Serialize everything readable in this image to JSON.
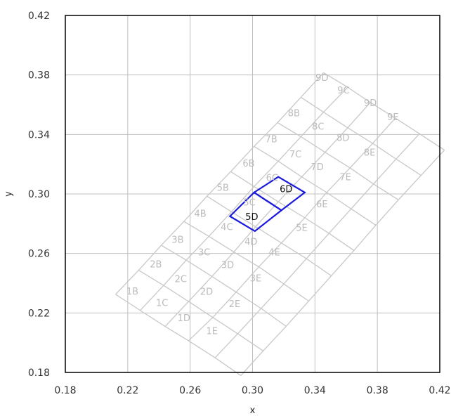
{
  "chart_data": {
    "type": "scatter",
    "title": "",
    "xlabel": "x",
    "ylabel": "y",
    "xlim": [
      0.18,
      0.42
    ],
    "ylim": [
      0.18,
      0.42
    ],
    "grid": true,
    "x_ticks": [
      "0.18",
      "0.22",
      "0.26",
      "0.30",
      "0.34",
      "0.38",
      "0.42"
    ],
    "y_ticks": [
      "0.18",
      "0.22",
      "0.26",
      "0.30",
      "0.34",
      "0.38",
      "0.42"
    ],
    "colors": {
      "bins": "#c8c8c8",
      "bin_labels": "#bbbbbb",
      "highlight": "#1a1adb",
      "highlight_label": "#111111",
      "grid": "#c0c0c0",
      "axis": "#000000"
    },
    "grid_corners": {
      "x": [
        [
          0.2122,
          0.228,
          0.244,
          0.259,
          0.276,
          0.2925
        ],
        [
          0.227,
          0.243,
          0.259,
          0.2745,
          0.2905,
          0.3068
        ],
        [
          0.2415,
          0.2575,
          0.274,
          0.2895,
          0.3055,
          0.3215
        ],
        [
          0.256,
          0.272,
          0.288,
          0.304,
          0.32,
          0.336
        ],
        [
          0.2708,
          0.2865,
          0.302,
          0.3185,
          0.3345,
          0.3505
        ],
        [
          0.286,
          0.301,
          0.3165,
          0.3335,
          0.349,
          0.365
        ],
        [
          0.301,
          0.3165,
          0.3315,
          0.3475,
          0.3632,
          0.379
        ],
        [
          0.316,
          0.331,
          0.3465,
          0.3625,
          0.3775,
          0.3935
        ],
        [
          0.331,
          0.3455,
          0.361,
          0.377,
          0.392,
          0.408
        ],
        [
          0.3455,
          0.361,
          0.3755,
          0.3915,
          0.407,
          0.423
        ]
      ],
      "y": [
        [
          0.2325,
          0.2217,
          0.2109,
          0.2013,
          0.1899,
          0.1779
        ],
        [
          0.2487,
          0.2385,
          0.2277,
          0.217,
          0.206,
          0.1945
        ],
        [
          0.2655,
          0.2555,
          0.2445,
          0.234,
          0.223,
          0.211
        ],
        [
          0.2815,
          0.2715,
          0.261,
          0.251,
          0.2395,
          0.228
        ],
        [
          0.2985,
          0.288,
          0.278,
          0.267,
          0.2565,
          0.245
        ],
        [
          0.315,
          0.305,
          0.2947,
          0.284,
          0.2735,
          0.262
        ],
        [
          0.332,
          0.322,
          0.3115,
          0.301,
          0.29,
          0.279
        ],
        [
          0.348,
          0.3385,
          0.328,
          0.3175,
          0.3067,
          0.296
        ],
        [
          0.365,
          0.355,
          0.3445,
          0.334,
          0.3235,
          0.3125
        ],
        [
          0.3815,
          0.3717,
          0.3615,
          0.351,
          0.3405,
          0.3295
        ]
      ]
    },
    "bins": [
      {
        "label": "1B",
        "x": 0.223,
        "y": 0.2348
      },
      {
        "label": "1C",
        "x": 0.242,
        "y": 0.227
      },
      {
        "label": "1D",
        "x": 0.256,
        "y": 0.2168
      },
      {
        "label": "1E",
        "x": 0.274,
        "y": 0.208
      },
      {
        "label": "2B",
        "x": 0.238,
        "y": 0.253
      },
      {
        "label": "2C",
        "x": 0.254,
        "y": 0.243
      },
      {
        "label": "2D",
        "x": 0.2705,
        "y": 0.2345
      },
      {
        "label": "2E",
        "x": 0.2885,
        "y": 0.2262
      },
      {
        "label": "3B",
        "x": 0.252,
        "y": 0.2695
      },
      {
        "label": "3C",
        "x": 0.269,
        "y": 0.261
      },
      {
        "label": "3D",
        "x": 0.284,
        "y": 0.2525
      },
      {
        "label": "3E",
        "x": 0.302,
        "y": 0.2435
      },
      {
        "label": "4B",
        "x": 0.2665,
        "y": 0.287
      },
      {
        "label": "4C",
        "x": 0.2835,
        "y": 0.278
      },
      {
        "label": "4D",
        "x": 0.299,
        "y": 0.268
      },
      {
        "label": "4E",
        "x": 0.314,
        "y": 0.261
      },
      {
        "label": "5B",
        "x": 0.281,
        "y": 0.3045
      },
      {
        "label": "5C",
        "x": 0.298,
        "y": 0.2945
      },
      {
        "label": "5D",
        "x": 0.2995,
        "y": 0.285
      },
      {
        "label": "5E",
        "x": 0.3315,
        "y": 0.2775
      },
      {
        "label": "6B",
        "x": 0.2975,
        "y": 0.3208
      },
      {
        "label": "6C",
        "x": 0.3125,
        "y": 0.311
      },
      {
        "label": "6D",
        "x": 0.3215,
        "y": 0.3035
      },
      {
        "label": "6E",
        "x": 0.3445,
        "y": 0.2935
      },
      {
        "label": "7B",
        "x": 0.312,
        "y": 0.337
      },
      {
        "label": "7C",
        "x": 0.3275,
        "y": 0.327
      },
      {
        "label": "7D",
        "x": 0.3415,
        "y": 0.3185
      },
      {
        "label": "7E",
        "x": 0.3595,
        "y": 0.3115
      },
      {
        "label": "8B",
        "x": 0.3265,
        "y": 0.3545
      },
      {
        "label": "8C",
        "x": 0.342,
        "y": 0.3455
      },
      {
        "label": "8D",
        "x": 0.358,
        "y": 0.338
      },
      {
        "label": "8E",
        "x": 0.375,
        "y": 0.328
      },
      {
        "label": "9D",
        "x": 0.3445,
        "y": 0.3785
      },
      {
        "label": "9C",
        "x": 0.3583,
        "y": 0.37
      },
      {
        "label": "9D",
        "x": 0.3755,
        "y": 0.3615
      },
      {
        "label": "9E",
        "x": 0.39,
        "y": 0.352
      }
    ],
    "highlighted": [
      {
        "label": "6D",
        "corners": [
          [
            0.301,
            0.301
          ],
          [
            0.3165,
            0.3115
          ],
          [
            0.3335,
            0.301
          ],
          [
            0.3185,
            0.289
          ]
        ]
      },
      {
        "label": "5D",
        "corners": [
          [
            0.2855,
            0.285
          ],
          [
            0.301,
            0.301
          ],
          [
            0.3185,
            0.289
          ],
          [
            0.3015,
            0.275
          ]
        ]
      }
    ]
  }
}
